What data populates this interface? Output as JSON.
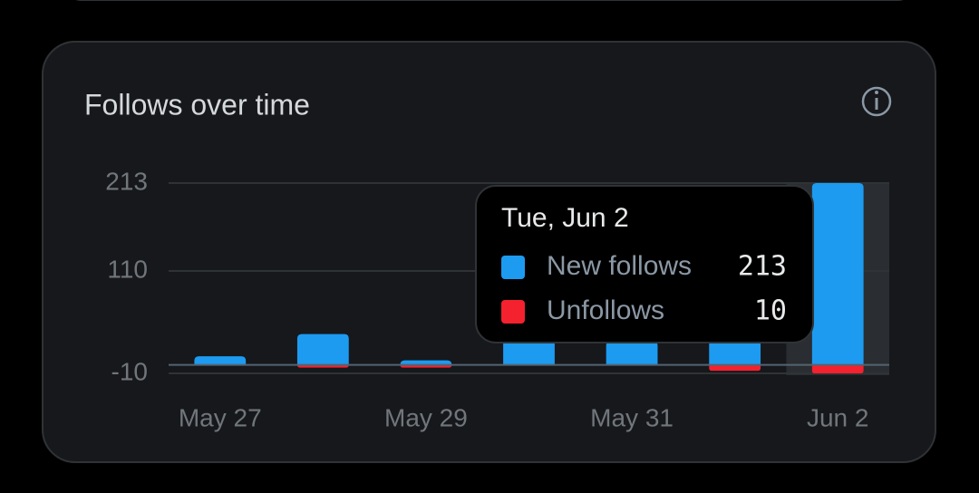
{
  "chart_data": {
    "type": "bar",
    "title": "Follows over time",
    "categories": [
      "May 27",
      null,
      "May 29",
      null,
      "May 31",
      null,
      "Jun 2"
    ],
    "series": [
      {
        "name": "New follows",
        "color": "#1d9bf0",
        "direction": "up",
        "values": [
          10,
          36,
          3,
          30,
          28,
          40,
          213
        ]
      },
      {
        "name": "Unfollows",
        "color": "#f4212e",
        "direction": "down",
        "values": [
          0,
          2,
          3,
          0,
          0,
          7,
          10
        ]
      }
    ],
    "ylim": [
      -10,
      213
    ],
    "yticks": [
      -10,
      110,
      213
    ],
    "grid": true,
    "highlight_index": 6,
    "tooltip": {
      "title": "Tue, Jun 2"
    }
  }
}
